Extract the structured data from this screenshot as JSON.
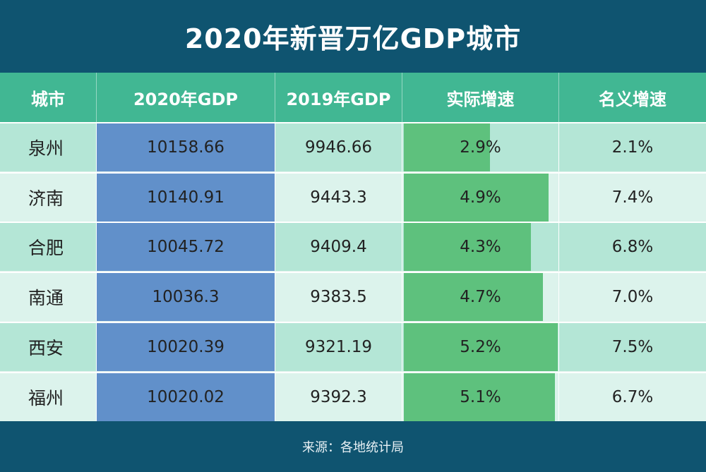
{
  "title": "2020年新晋万亿GDP城市",
  "chart_data": {
    "type": "table",
    "columns": [
      "城市",
      "2020年GDP",
      "2019年GDP",
      "实际增速",
      "名义增速"
    ],
    "rows": [
      {
        "city": "泉州",
        "gdp2020": "10158.66",
        "gdp2019": "9946.66",
        "real_growth": "2.9%",
        "real_value": 2.9,
        "nominal_growth": "2.1%"
      },
      {
        "city": "济南",
        "gdp2020": "10140.91",
        "gdp2019": "9443.3",
        "real_growth": "4.9%",
        "real_value": 4.9,
        "nominal_growth": "7.4%"
      },
      {
        "city": "合肥",
        "gdp2020": "10045.72",
        "gdp2019": "9409.4",
        "real_growth": "4.3%",
        "real_value": 4.3,
        "nominal_growth": "6.8%"
      },
      {
        "city": "南通",
        "gdp2020": "10036.3",
        "gdp2019": "9383.5",
        "real_growth": "4.7%",
        "real_value": 4.7,
        "nominal_growth": "7.0%"
      },
      {
        "city": "西安",
        "gdp2020": "10020.39",
        "gdp2019": "9321.19",
        "real_growth": "5.2%",
        "real_value": 5.2,
        "nominal_growth": "7.5%"
      },
      {
        "city": "福州",
        "gdp2020": "10020.02",
        "gdp2019": "9392.3",
        "real_growth": "5.1%",
        "real_value": 5.1,
        "nominal_growth": "6.7%"
      }
    ],
    "bar_max": 5.2
  },
  "footer": "来源：各地统计局",
  "colors": {
    "background": "#0f5470",
    "header": "#41b793",
    "gdp_2020_column": "#6190ca",
    "growth_bar": "#5ec17d",
    "row_odd": "#b4e6d6",
    "row_even": "#dcf3ec"
  }
}
